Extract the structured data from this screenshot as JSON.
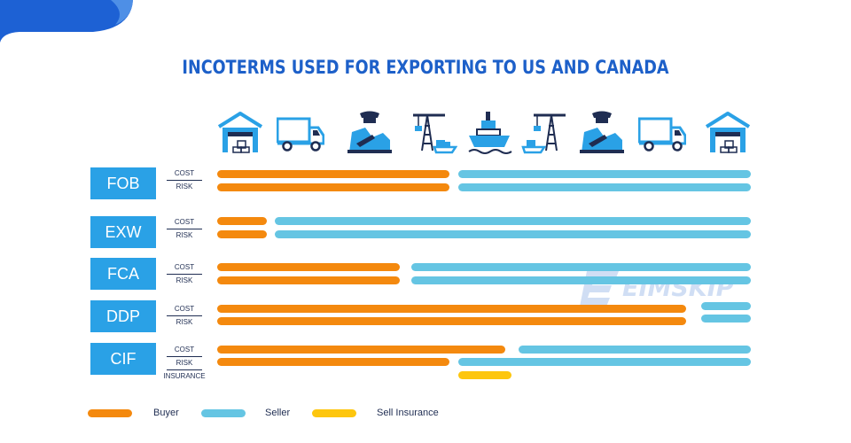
{
  "title": "INCOTERMS USED FOR EXPORTING TO US AND CANADA",
  "stages": [
    {
      "icon": "warehouse-icon"
    },
    {
      "icon": "truck-icon"
    },
    {
      "icon": "customs-officer-icon"
    },
    {
      "icon": "port-crane-icon"
    },
    {
      "icon": "ship-icon"
    },
    {
      "icon": "port-crane-icon"
    },
    {
      "icon": "customs-officer-icon"
    },
    {
      "icon": "truck-icon"
    },
    {
      "icon": "warehouse-icon"
    }
  ],
  "labels": {
    "cost": "COST",
    "risk": "RISK",
    "insurance": "INSURANCE"
  },
  "terms": [
    "FOB",
    "EXW",
    "FCA",
    "DDP",
    "CIF"
  ],
  "legend": {
    "buyer": "Buyer",
    "seller": "Seller",
    "insurance": "Sell Insurance"
  },
  "watermark": "EIMSKIP",
  "colors": {
    "title": "#1d60c9",
    "term_box": "#2aa1e6",
    "buyer": "#f4890e",
    "seller": "#65c5e3",
    "insurance": "#fdc60e"
  }
}
